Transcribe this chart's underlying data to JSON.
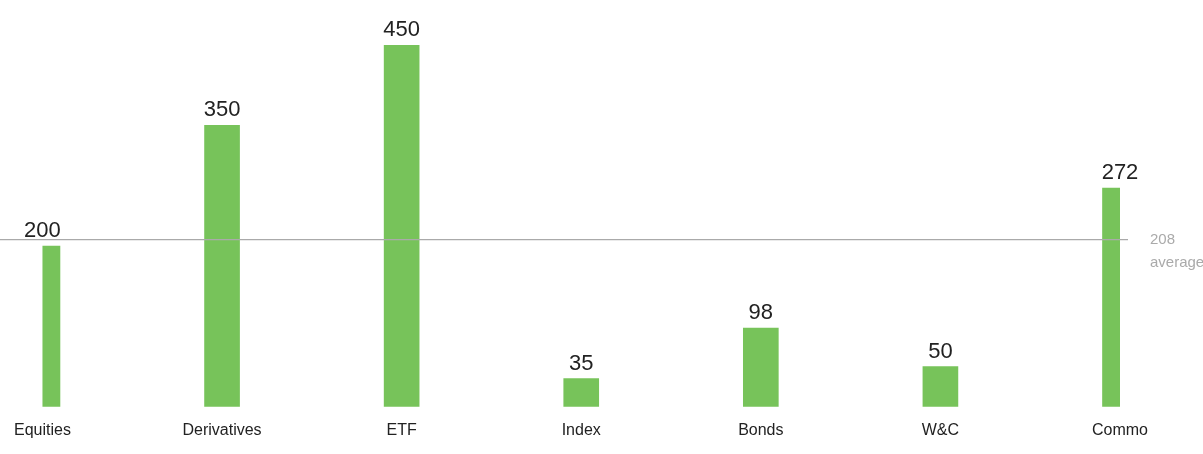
{
  "chart_data": {
    "type": "bar",
    "categories": [
      "Equities",
      "Derivatives",
      "ETF",
      "Index",
      "Bonds",
      "W&C",
      "Commo"
    ],
    "values": [
      200,
      350,
      450,
      35,
      98,
      50,
      272
    ],
    "color": "#77c35a",
    "data_labels": true,
    "grid": false,
    "legend": false,
    "tick_labels": "x",
    "ref_lines": [
      {
        "axis": "y",
        "value": 208,
        "label": "208 average",
        "color": "#aaaaaa"
      }
    ]
  }
}
